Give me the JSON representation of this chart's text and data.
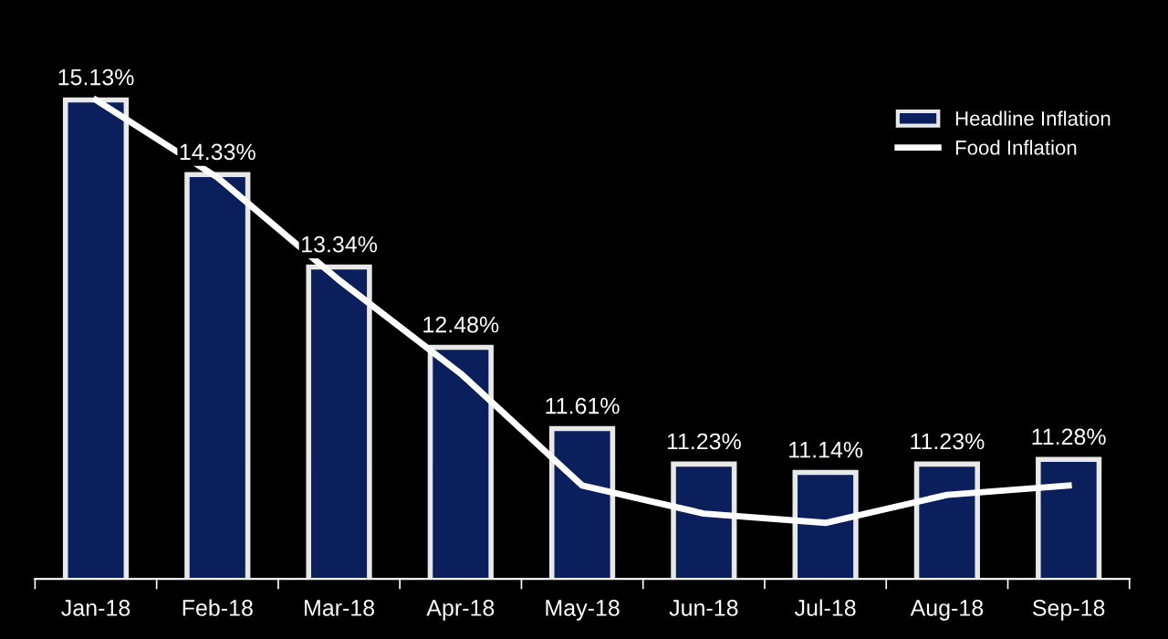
{
  "chart_data": {
    "type": "bar",
    "categories": [
      "Jan-18",
      "Feb-18",
      "Mar-18",
      "Apr-18",
      "May-18",
      "Jun-18",
      "Jul-18",
      "Aug-18",
      "Sep-18"
    ],
    "series": [
      {
        "name": "Headline Inflation",
        "color": "#0a1f5c",
        "values": [
          15.13,
          14.33,
          13.34,
          12.48,
          11.61,
          11.23,
          11.14,
          11.23,
          11.28
        ],
        "value_labels": [
          "15.13%",
          "14.33%",
          "13.34%",
          "12.48%",
          "11.61%",
          "11.23%",
          "11.14%",
          "11.23%",
          "11.28%"
        ]
      },
      {
        "name": "Food Inflation",
        "type": "line",
        "color": "#ffffff",
        "values": [
          15.13,
          14.3,
          13.2,
          12.2,
          11.0,
          10.7,
          10.6,
          10.9,
          11.0
        ]
      }
    ],
    "ylim": [
      10,
      16.2
    ],
    "tick_labels": "x",
    "grid": false,
    "legend": "top right",
    "marker": "none",
    "line_style": "solid"
  }
}
